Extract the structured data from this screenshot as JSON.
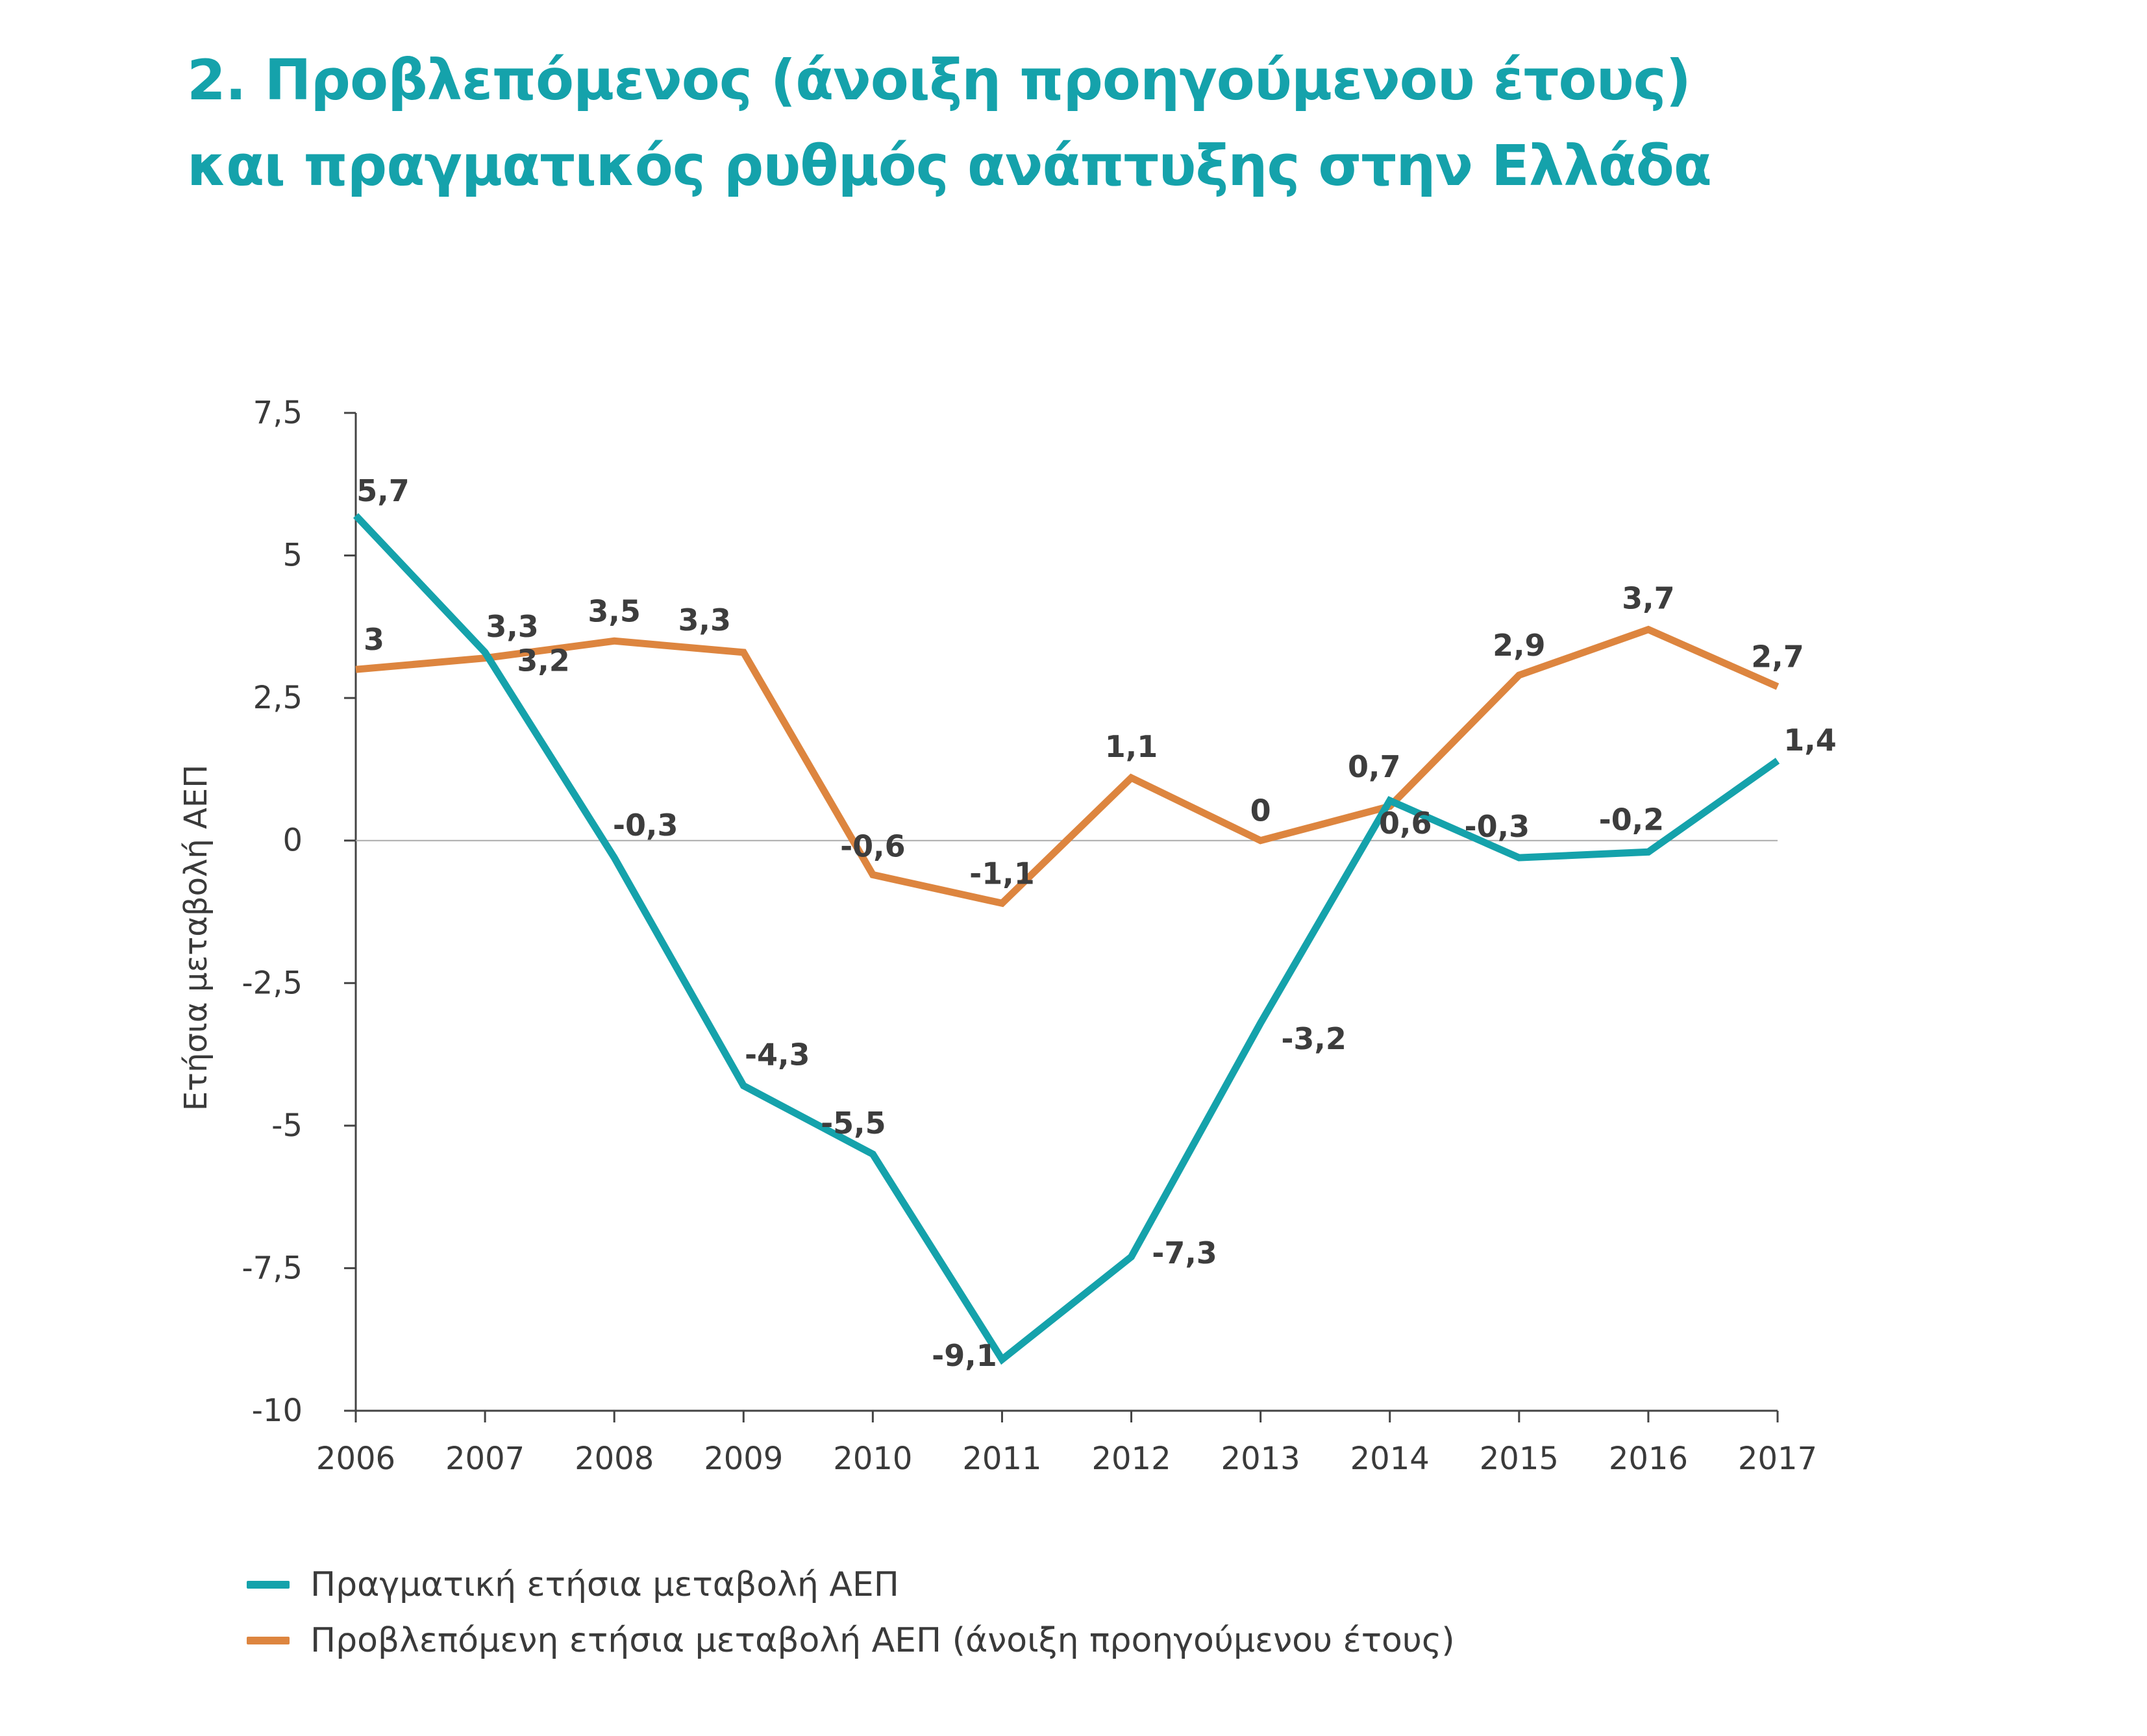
{
  "title": {
    "line1": "2. Προβλεπόμενος (άνοιξη προηγούμενου έτους)",
    "line2": "και πραγματικός ρυθμός ανάπτυξης στην Ελλάδα"
  },
  "colors": {
    "title": "#15a2ab",
    "actual": "#15a2ab",
    "forecast": "#dd853f",
    "axis": "#444444",
    "zero_line": "#aaaaaa",
    "text": "#3a3a3a"
  },
  "chart_data": {
    "type": "line",
    "title": "2. Προβλεπόμενος (άνοιξη προηγούμενου έτους) και πραγματικός ρυθμός ανάπτυξης στην Ελλάδα",
    "xlabel": "",
    "ylabel": "Ετήσια μεταβολή ΑΕΠ",
    "categories": [
      "2006",
      "2007",
      "2008",
      "2009",
      "2010",
      "2011",
      "2012",
      "2013",
      "2014",
      "2015",
      "2016",
      "2017"
    ],
    "ylim": [
      -10,
      7.5
    ],
    "yticks": [
      7.5,
      5,
      2.5,
      0,
      -2.5,
      -5,
      -7.5,
      -10
    ],
    "ytick_labels": [
      "7,5",
      "5",
      "2,5",
      "0",
      "-2,5",
      "-5",
      "-7,5",
      "-10"
    ],
    "grid": false,
    "zero_line": true,
    "legend_position": "bottom-left",
    "series": [
      {
        "name": "Πραγματική ετήσια μεταβολή ΑΕΠ",
        "color": "#15a2ab",
        "values": [
          5.7,
          3.3,
          -0.3,
          -4.3,
          -5.5,
          -9.1,
          -7.3,
          -3.2,
          0.7,
          -0.3,
          -0.2,
          1.4
        ],
        "labels": [
          "5,7",
          "3,3",
          "-0,3",
          "-4,3",
          "-5,5",
          "-9,1",
          "-7,3",
          "-3,2",
          "0,7",
          "-0,3",
          "-0,2",
          "1,4"
        ]
      },
      {
        "name": "Προβλεπόμενη ετήσια μεταβολή ΑΕΠ (άνοιξη προηγούμενου έτους)",
        "color": "#dd853f",
        "values": [
          3.0,
          3.2,
          3.5,
          3.3,
          -0.6,
          -1.1,
          1.1,
          0.0,
          0.6,
          2.9,
          3.7,
          2.7
        ],
        "labels": [
          "3",
          "3,2",
          "3,5",
          "3,3",
          "-0,6",
          "-1,1",
          "1,1",
          "0",
          "0,6",
          "2,9",
          "3,7",
          "2,7"
        ]
      }
    ]
  }
}
